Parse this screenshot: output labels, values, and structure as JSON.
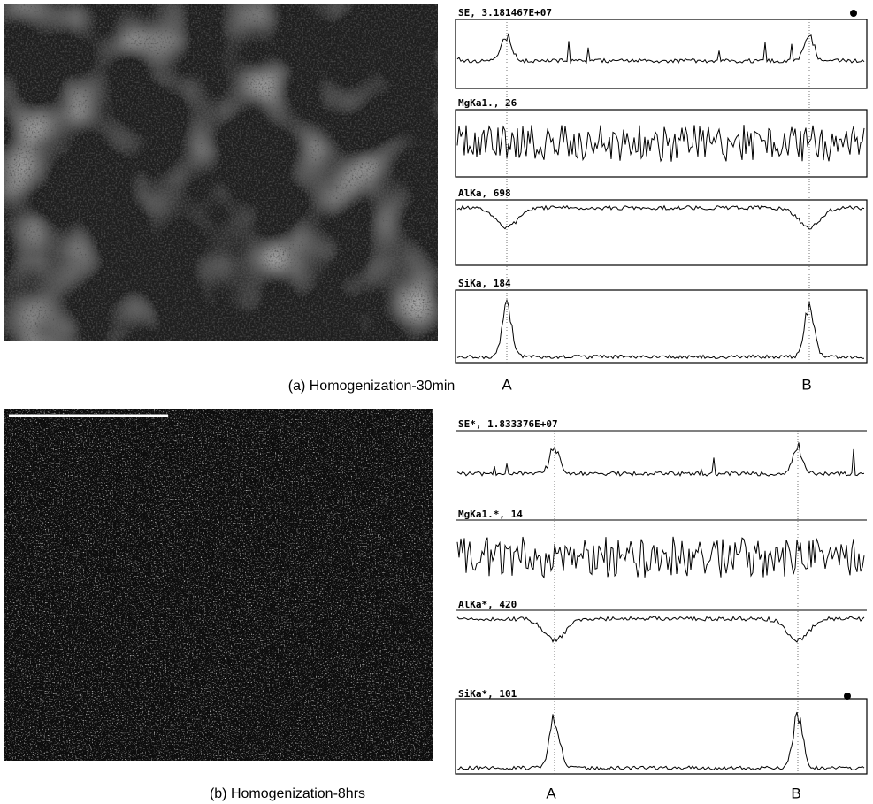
{
  "panels": [
    {
      "caption": "(a) Homogenization-30min",
      "traces": [
        {
          "label": "SE, 3.181467E+07"
        },
        {
          "label": "MgKa1., 26"
        },
        {
          "label": "AlKa, 698"
        },
        {
          "label": "SiKa, 184"
        }
      ],
      "markers": [
        "A",
        "B"
      ]
    },
    {
      "caption": "(b) Homogenization-8hrs",
      "traces": [
        {
          "label": "SE*, 1.833376E+07"
        },
        {
          "label": "MgKa1.*, 14"
        },
        {
          "label": "AlKa*, 420"
        },
        {
          "label": "SiKa*, 101"
        }
      ],
      "markers": [
        "A",
        "B"
      ]
    }
  ]
}
